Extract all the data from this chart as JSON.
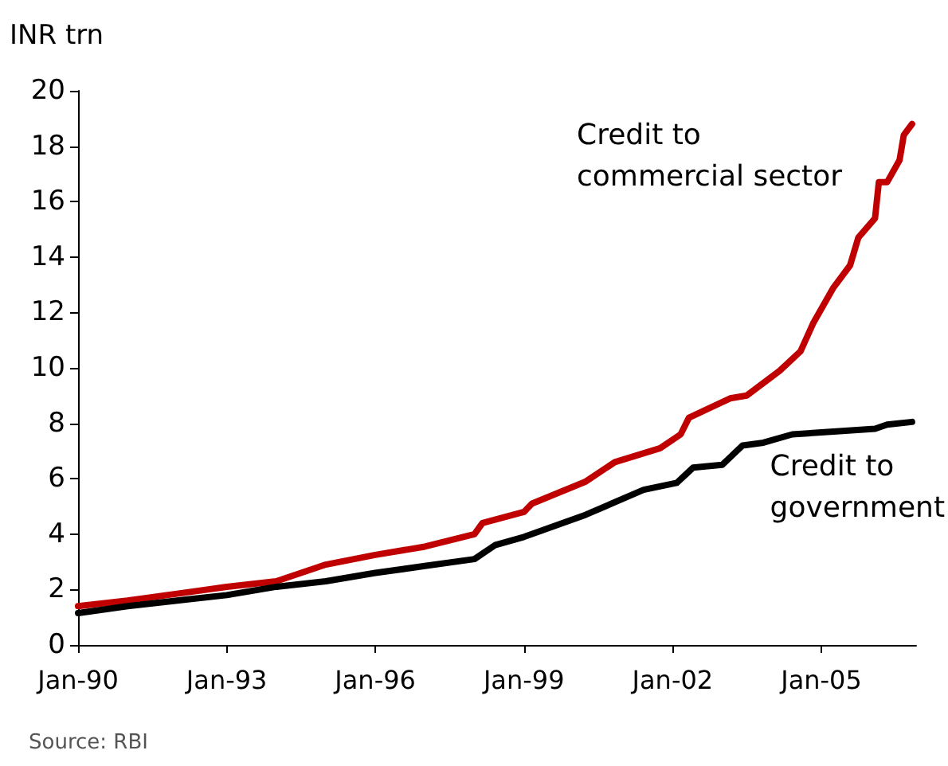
{
  "chart_data": {
    "type": "line",
    "ylabel": "INR trn",
    "annotations": [
      "Source: RBI"
    ],
    "xlim": [
      "1990-01",
      "2006-12"
    ],
    "xticks": [
      {
        "value": "1990-01",
        "label": "Jan-90"
      },
      {
        "value": "1993-01",
        "label": "Jan-93"
      },
      {
        "value": "1996-01",
        "label": "Jan-96"
      },
      {
        "value": "1999-01",
        "label": "Jan-99"
      },
      {
        "value": "2002-01",
        "label": "Jan-02"
      },
      {
        "value": "2005-01",
        "label": "Jan-05"
      }
    ],
    "ylim": [
      0,
      20
    ],
    "yticks": [
      0,
      2,
      4,
      6,
      8,
      10,
      12,
      14,
      16,
      18,
      20
    ],
    "grid": false,
    "marker": "none",
    "line_style": "solid",
    "series": [
      {
        "name": "Credit to commercial sector",
        "color": "#c00000",
        "x": [
          "1990-01",
          "1991-01",
          "1992-01",
          "1993-01",
          "1994-01",
          "1995-01",
          "1996-01",
          "1997-01",
          "1998-01",
          "1998-03",
          "1999-01",
          "1999-03",
          "2000-04",
          "2000-11",
          "2001-10",
          "2002-03",
          "2002-05",
          "2003-03",
          "2003-07",
          "2004-03",
          "2004-08",
          "2004-11",
          "2005-04",
          "2005-08",
          "2005-10",
          "2006-02",
          "2006-03",
          "2006-05",
          "2006-08",
          "2006-09",
          "2006-11"
        ],
        "values": [
          1.4,
          1.6,
          1.85,
          2.1,
          2.3,
          2.9,
          3.25,
          3.55,
          4.0,
          4.4,
          4.8,
          5.1,
          5.9,
          6.6,
          7.1,
          7.6,
          8.2,
          8.9,
          9.0,
          9.9,
          10.6,
          11.6,
          12.9,
          13.7,
          14.7,
          15.4,
          16.7,
          16.7,
          17.5,
          18.4,
          18.8
        ]
      },
      {
        "name": "Credit to government",
        "color": "#000000",
        "x": [
          "1990-01",
          "1991-01",
          "1992-01",
          "1993-01",
          "1994-01",
          "1995-01",
          "1996-01",
          "1997-01",
          "1998-01",
          "1998-06",
          "1999-01",
          "2000-04",
          "2001-06",
          "2002-02",
          "2002-06",
          "2003-01",
          "2003-06",
          "2003-11",
          "2004-06",
          "2005-04",
          "2006-02",
          "2006-05",
          "2006-11"
        ],
        "values": [
          1.15,
          1.4,
          1.6,
          1.8,
          2.1,
          2.3,
          2.6,
          2.85,
          3.1,
          3.6,
          3.9,
          4.7,
          5.6,
          5.85,
          6.4,
          6.5,
          7.2,
          7.3,
          7.6,
          7.7,
          7.8,
          7.95,
          8.05
        ]
      }
    ]
  }
}
